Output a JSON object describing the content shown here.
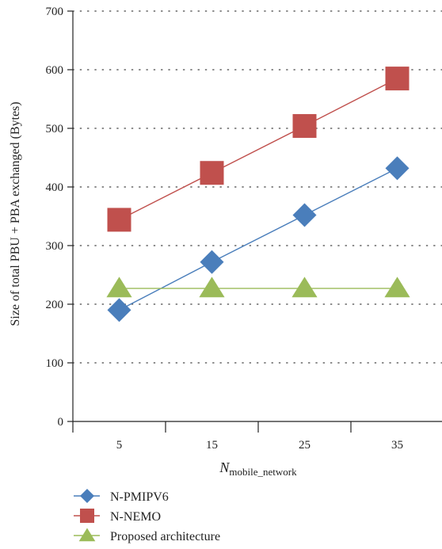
{
  "chart_data": {
    "type": "line",
    "categories": [
      "5",
      "15",
      "25",
      "35"
    ],
    "ylabel": "Size of total PBU + PBA exchanged (Bytes)",
    "xlabel_main": "N",
    "xlabel_sub": "mobile_network",
    "ylim": [
      0,
      700
    ],
    "yticks": [
      0,
      100,
      200,
      300,
      400,
      500,
      600,
      700
    ],
    "grid": "horizontal dotted",
    "legend_position": "bottom-left",
    "series": [
      {
        "name": "N-PMIPV6",
        "values": [
          190,
          272,
          352,
          432
        ],
        "color": "#4a7ebb",
        "marker": "diamond"
      },
      {
        "name": "N-NEMO",
        "values": [
          344,
          424,
          504,
          585
        ],
        "color": "#c0504d",
        "marker": "square"
      },
      {
        "name": "Proposed architecture",
        "values": [
          227,
          227,
          227,
          227
        ],
        "color": "#9bbb59",
        "marker": "triangle"
      }
    ]
  }
}
